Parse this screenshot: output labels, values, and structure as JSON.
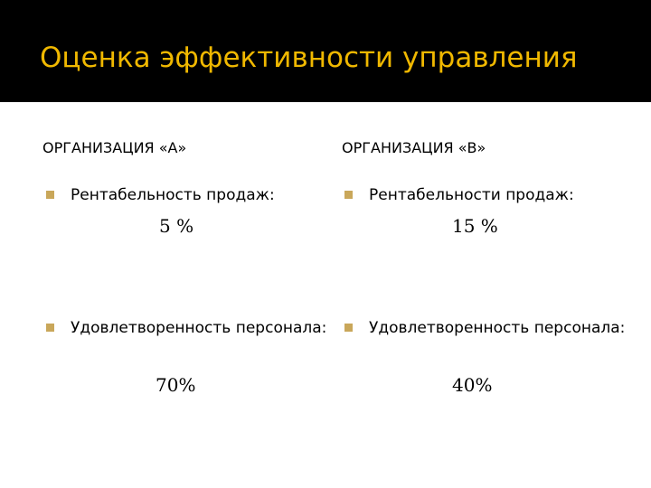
{
  "title": "Оценка эффективности управления",
  "colors": {
    "title_band": "#000000",
    "title_text": "#f0b800",
    "bullet": "#c9a75a"
  },
  "columns": [
    {
      "heading": "ОРГАНИЗАЦИЯ «А»",
      "items": [
        {
          "label": "Рентабельность продаж:",
          "value": "5 %"
        },
        {
          "label": "Удовлетворенность персонала:",
          "value": "70%"
        }
      ]
    },
    {
      "heading": "ОРГАНИЗАЦИЯ «В»",
      "items": [
        {
          "label": "Рентабельности продаж:",
          "value": "15 %"
        },
        {
          "label": "Удовлетворенность персонала:",
          "value": "40%"
        }
      ]
    }
  ]
}
